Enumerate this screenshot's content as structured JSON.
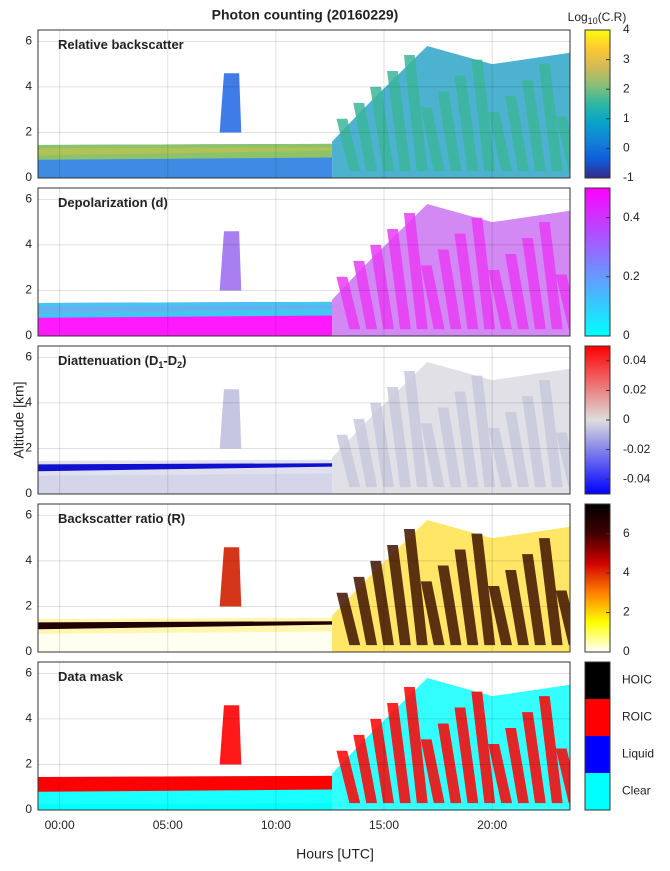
{
  "chart_data": {
    "type": "heatmap",
    "title": "Photon counting (20160229)",
    "x_label": "Hours [UTC]",
    "y_label": "Altitude [km]",
    "xlim": [
      -1,
      23.6
    ],
    "xticks": [
      {
        "value": 0,
        "label": "00:00"
      },
      {
        "value": 5,
        "label": "05:00"
      },
      {
        "value": 10,
        "label": "10:00"
      },
      {
        "value": 15,
        "label": "15:00"
      },
      {
        "value": 20,
        "label": "20:00"
      }
    ],
    "ylim": [
      0,
      6.5
    ],
    "yticks": [
      0,
      2,
      4,
      6
    ],
    "grid": true,
    "panels": [
      {
        "title": [
          "Relative backscatter"
        ],
        "colorbar_label": [
          "Log",
          "10",
          "(C.R)"
        ],
        "clim": [
          -1,
          4
        ],
        "cticks": [
          -1,
          0,
          1,
          2,
          3,
          4
        ],
        "colormap": [
          "#352a87",
          "#0f5cdd",
          "#1481d6",
          "#06a4ca",
          "#2eb7a4",
          "#87bf77",
          "#d1bb59",
          "#fec832",
          "#f9fb0e"
        ]
      },
      {
        "title": [
          "Depolarization (d)"
        ],
        "clim": [
          0,
          0.5
        ],
        "cticks": [
          0,
          0.2,
          0.4
        ],
        "colormap": [
          "#00ffff",
          "#ff00ff"
        ]
      },
      {
        "title": [
          "Diattenuation (D",
          "1",
          "-D",
          "2",
          ")"
        ],
        "clim": [
          -0.05,
          0.05
        ],
        "cticks": [
          -0.04,
          -0.02,
          0,
          0.02,
          0.04
        ],
        "colormap": [
          "#0000ff",
          "#dddddd",
          "#ff0000"
        ]
      },
      {
        "title": [
          "Backscatter  ratio (R)"
        ],
        "clim": [
          0,
          7.5
        ],
        "cticks": [
          0,
          2,
          4,
          6
        ],
        "colormap": [
          "#ffffff",
          "#ffff00",
          "#ff8000",
          "#d00000",
          "#400000",
          "#000000"
        ]
      },
      {
        "title": [
          "Data mask"
        ],
        "classes": [
          "Clear",
          "Liquid",
          "ROIC",
          "HOIC"
        ],
        "class_colors": [
          "#00ffff",
          "#0000ff",
          "#ff0000",
          "#000000"
        ]
      }
    ]
  }
}
